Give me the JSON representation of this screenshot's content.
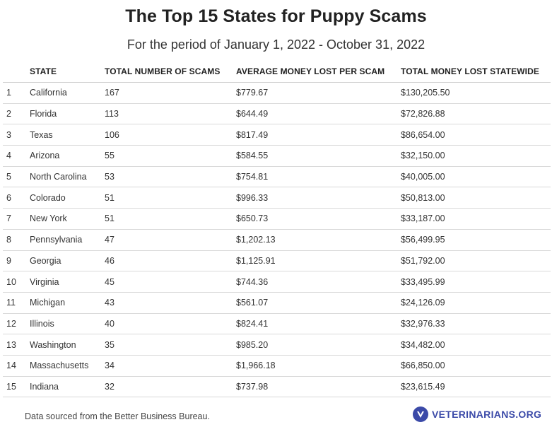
{
  "chart_data": {
    "type": "table",
    "title": "The Top 15 States for Puppy Scams",
    "subtitle": "For the period of January 1, 2022 - October 31, 2022",
    "columns": [
      "",
      "STATE",
      "TOTAL NUMBER OF SCAMS",
      "AVERAGE MONEY LOST PER SCAM",
      "TOTAL MONEY LOST STATEWIDE"
    ],
    "rows": [
      [
        "1",
        "California",
        "167",
        "$779.67",
        "$130,205.50"
      ],
      [
        "2",
        "Florida",
        "113",
        "$644.49",
        "$72,826.88"
      ],
      [
        "3",
        "Texas",
        "106",
        "$817.49",
        "$86,654.00"
      ],
      [
        "4",
        "Arizona",
        "55",
        "$584.55",
        "$32,150.00"
      ],
      [
        "5",
        "North Carolina",
        "53",
        "$754.81",
        "$40,005.00"
      ],
      [
        "6",
        "Colorado",
        "51",
        "$996.33",
        "$50,813.00"
      ],
      [
        "7",
        "New York",
        "51",
        "$650.73",
        "$33,187.00"
      ],
      [
        "8",
        "Pennsylvania",
        "47",
        "$1,202.13",
        "$56,499.95"
      ],
      [
        "9",
        "Georgia",
        "46",
        "$1,125.91",
        "$51,792.00"
      ],
      [
        "10",
        "Virginia",
        "45",
        "$744.36",
        "$33,495.99"
      ],
      [
        "11",
        "Michigan",
        "43",
        "$561.07",
        "$24,126.09"
      ],
      [
        "12",
        "Illinois",
        "40",
        "$824.41",
        "$32,976.33"
      ],
      [
        "13",
        "Washington",
        "35",
        "$985.20",
        "$34,482.00"
      ],
      [
        "14",
        "Massachusetts",
        "34",
        "$1,966.18",
        "$66,850.00"
      ],
      [
        "15",
        "Indiana",
        "32",
        "$737.98",
        "$23,615.49"
      ]
    ]
  },
  "footer": {
    "source": "Data sourced from the Better Business Bureau.",
    "brand": "VETERINARIANS.ORG",
    "brand_icon": "v-shield-icon",
    "brand_color": "#3b4aa8"
  }
}
